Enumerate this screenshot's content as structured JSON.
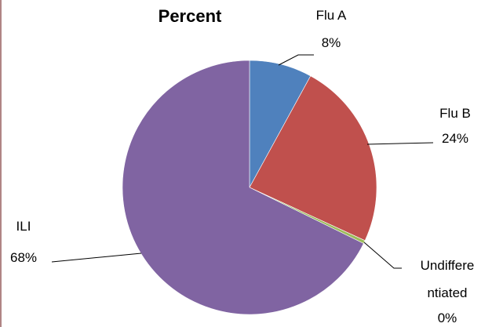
{
  "chart_data": {
    "type": "pie",
    "title": "Percent",
    "slices": [
      {
        "label": "Flu A",
        "value": 8,
        "display": "8%",
        "color": "#4f81bd"
      },
      {
        "label": "Flu B",
        "value": 24,
        "display": "24%",
        "color": "#c0504d"
      },
      {
        "label": "Undiffere ntiated",
        "value": 0.4,
        "display": "0%",
        "color": "#9bbb59"
      },
      {
        "label": "ILI",
        "value": 68,
        "display": "68%",
        "color": "#8064a2"
      }
    ]
  }
}
